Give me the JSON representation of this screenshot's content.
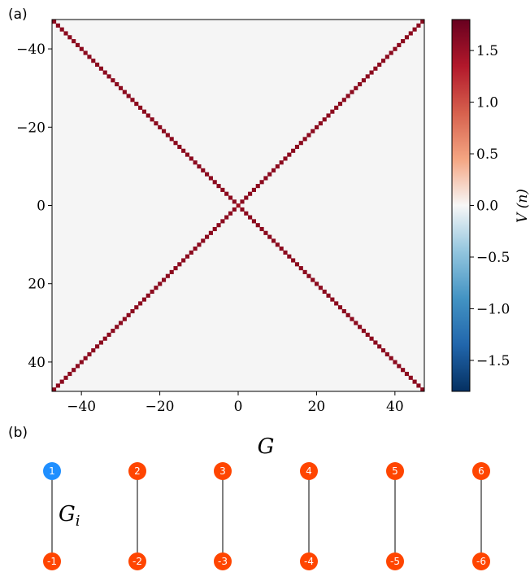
{
  "panel_a_label": "(a)",
  "panel_b_label": "(b)",
  "chart_data": {
    "type": "heatmap",
    "description_axes": "square matrix V(G_i, G_j)",
    "x_range": [
      -47,
      47
    ],
    "y_range": [
      -47,
      47
    ],
    "y_inverted": true,
    "xticks": [
      -40,
      -20,
      0,
      20,
      40
    ],
    "yticks": [
      -40,
      -20,
      0,
      20,
      40
    ],
    "xtick_labels": [
      "−40",
      "−20",
      "0",
      "20",
      "40"
    ],
    "ytick_labels": [
      "−40",
      "−20",
      "0",
      "20",
      "40"
    ],
    "background_value": 0.0,
    "diagonal_value": 1.8,
    "diagonals": [
      "main",
      "anti"
    ],
    "colormap": "RdBu_r",
    "colorbar": {
      "range": [
        -1.8,
        1.8
      ],
      "ticks": [
        1.5,
        1.0,
        0.5,
        0.0,
        -0.5,
        -1.0,
        -1.5
      ],
      "tick_labels": [
        "1.5",
        "1.0",
        "0.5",
        "0.0",
        "−0.5",
        "−1.0",
        "−1.5"
      ],
      "label": "V (n)"
    }
  },
  "graph": {
    "title": "G",
    "sublabel": "G",
    "sublabel_sub": "i",
    "top_nodes": [
      "1",
      "2",
      "3",
      "4",
      "5",
      "6"
    ],
    "bottom_nodes": [
      "-1",
      "-2",
      "-3",
      "-4",
      "-5",
      "-6"
    ],
    "highlight_node": "1",
    "colors": {
      "highlight": "#1f8fff",
      "node": "#ff4500",
      "edge": "#000000"
    }
  },
  "colors": {
    "background_cell": "#f5f5f5",
    "diagonal_cell": "#8b0a1e",
    "center_cell": "#a01020"
  }
}
